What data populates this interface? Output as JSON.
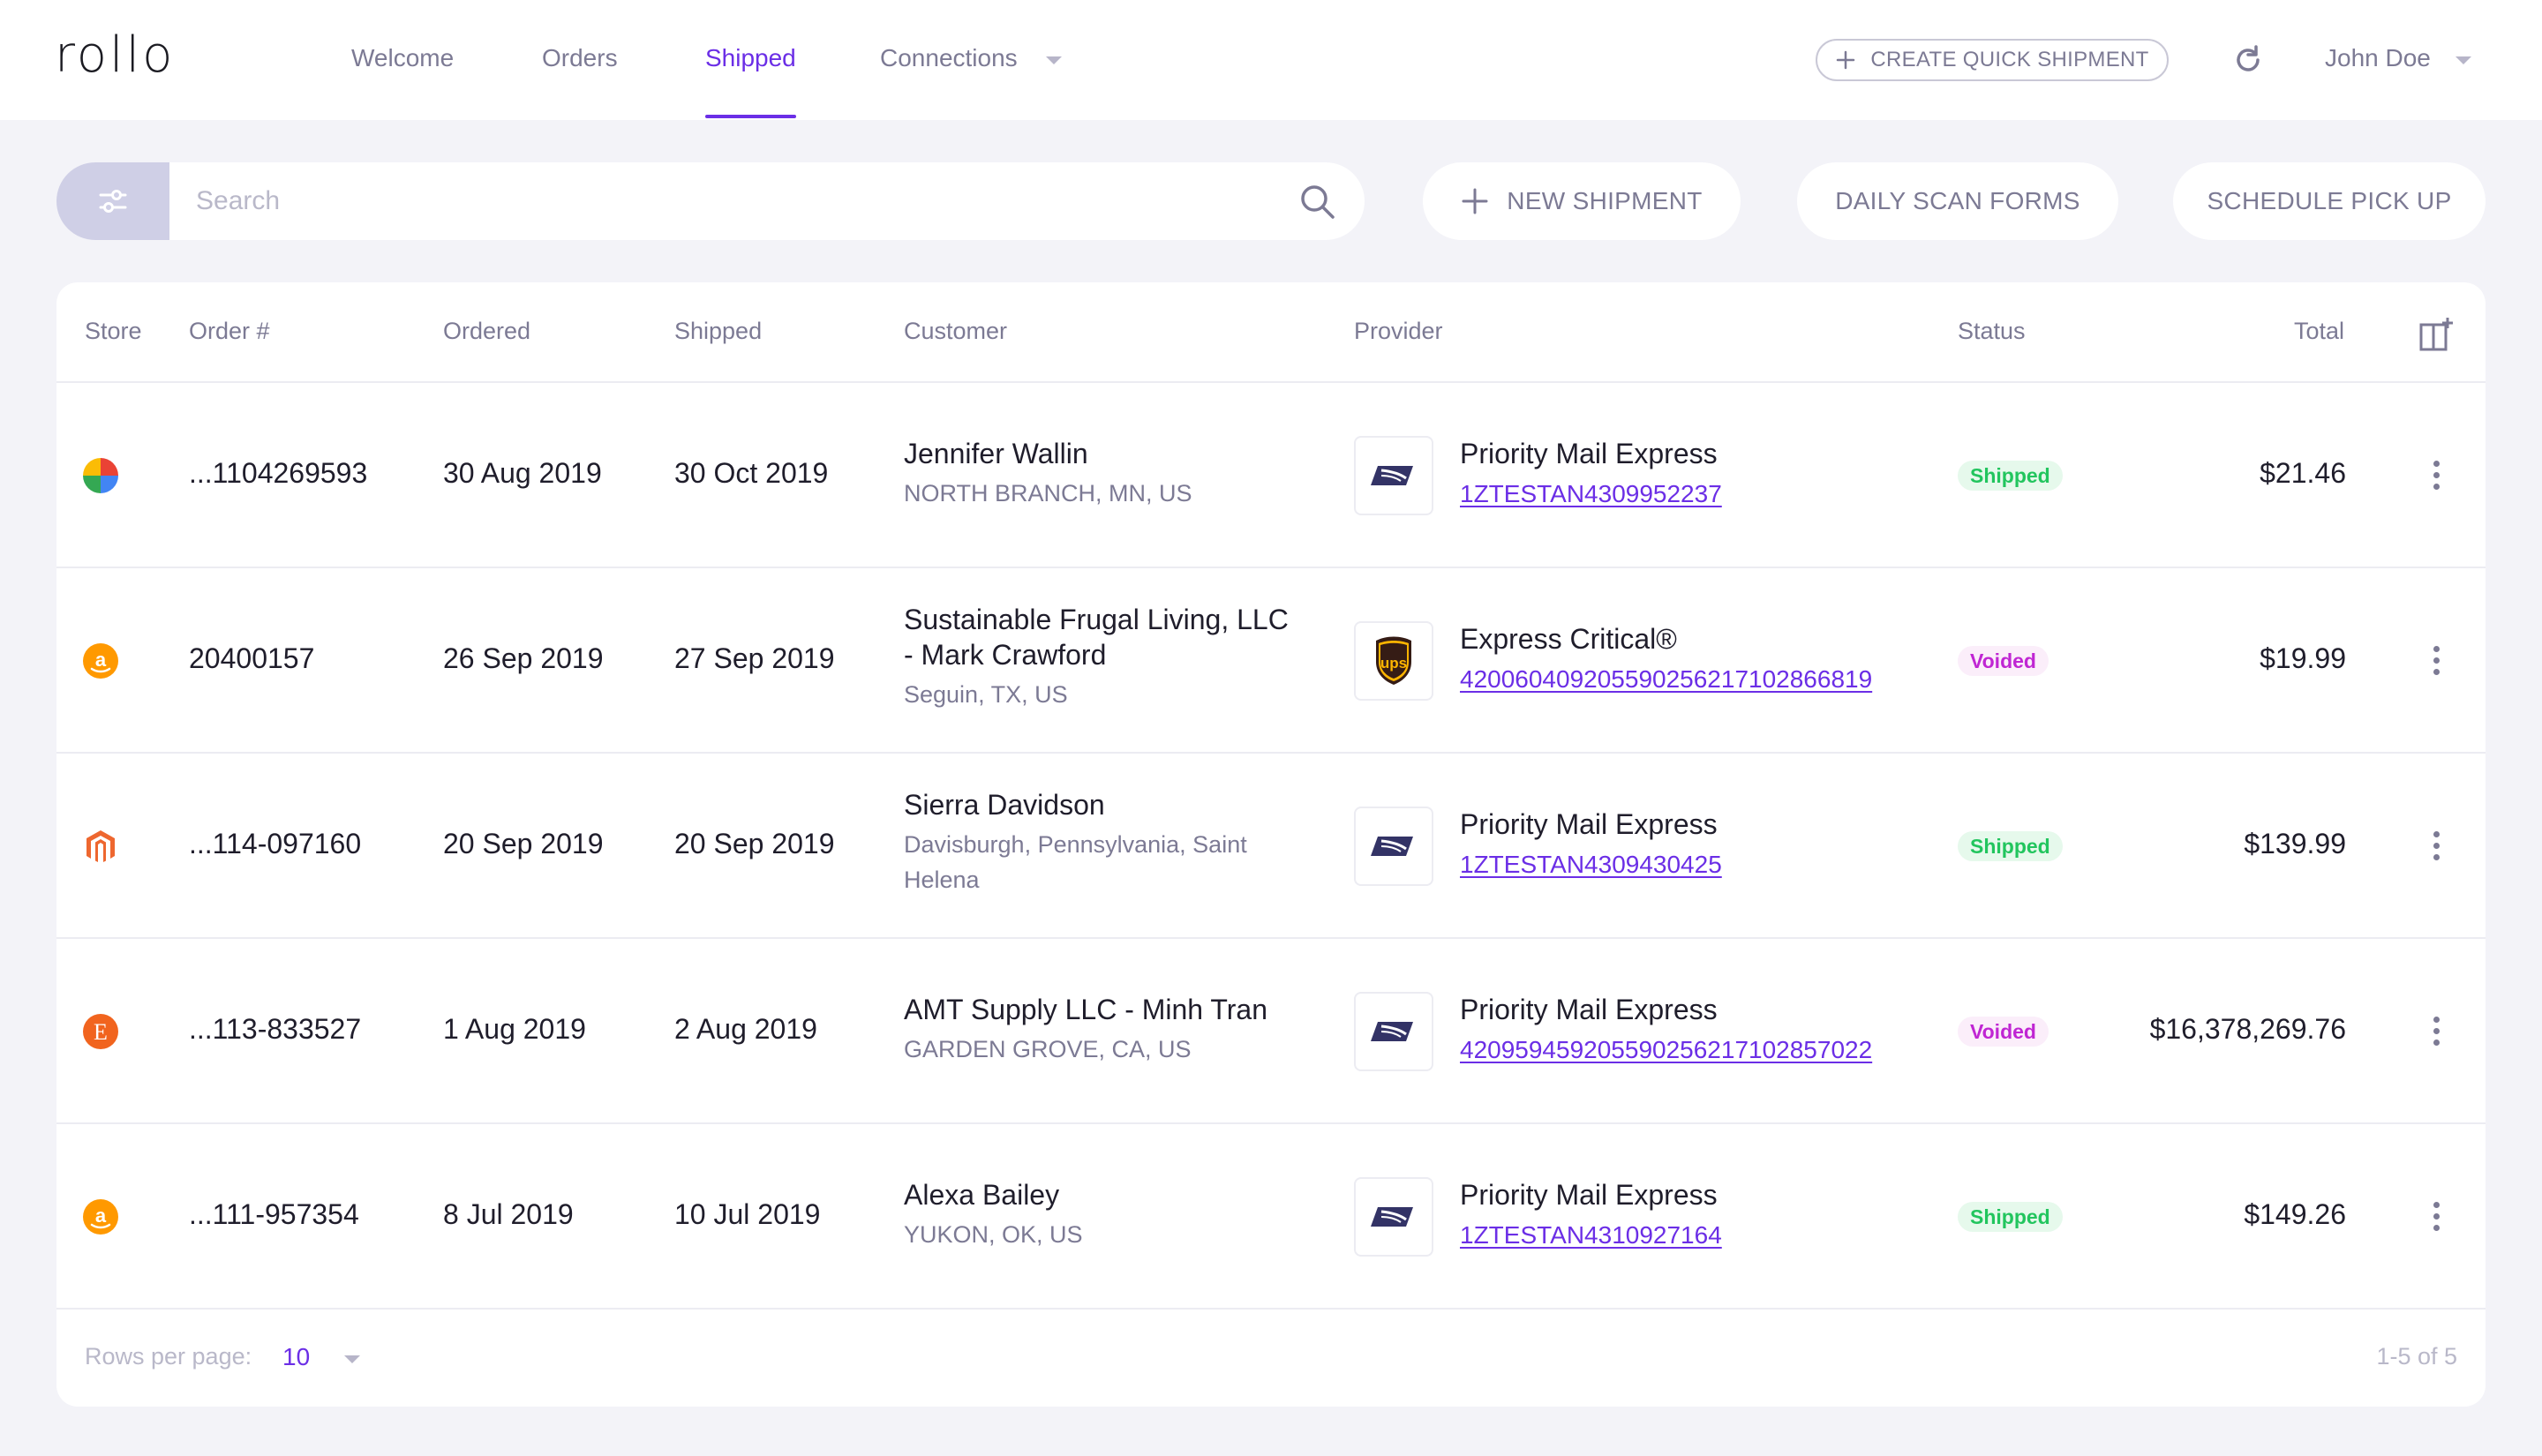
{
  "app": {
    "logo": "rollo"
  },
  "nav": {
    "items": [
      {
        "label": "Welcome"
      },
      {
        "label": "Orders"
      },
      {
        "label": "Shipped"
      },
      {
        "label": "Connections"
      }
    ],
    "active": "Shipped",
    "quick_shipment": "CREATE QUICK SHIPMENT",
    "user": "John Doe"
  },
  "toolbar": {
    "search_placeholder": "Search",
    "new_shipment": "NEW SHIPMENT",
    "daily_scan_forms": "DAILY SCAN FORMS",
    "schedule_pick_up": "SCHEDULE PICK UP"
  },
  "table": {
    "columns": [
      "Store",
      "Order #",
      "Ordered",
      "Shipped",
      "Customer",
      "Provider",
      "Status",
      "Total"
    ],
    "rows": [
      {
        "store_icon": "google-shopping-icon",
        "order": "...1104269593",
        "ordered": "30 Aug 2019",
        "shipped": "30 Oct 2019",
        "customer_name": "Jennifer Wallin",
        "customer_location": "NORTH BRANCH, MN, US",
        "provider_icon": "usps-icon",
        "service": "Priority Mail Express",
        "tracking": "1ZTESTAN4309952237",
        "status": "Shipped",
        "total": "$21.46"
      },
      {
        "store_icon": "amazon-icon",
        "order": "20400157",
        "ordered": "26 Sep 2019",
        "shipped": "27 Sep 2019",
        "customer_name": "Sustainable Frugal Living, LLC",
        "customer_name_2": "- Mark Crawford",
        "customer_location": "Seguin, TX, US",
        "provider_icon": "ups-icon",
        "service": "Express Critical®",
        "tracking": "420060409205590256217102866819",
        "status": "Voided",
        "total": "$19.99"
      },
      {
        "store_icon": "magento-icon",
        "order": "...114-097160",
        "ordered": "20 Sep 2019",
        "shipped": "20 Sep 2019",
        "customer_name": "Sierra Davidson",
        "customer_location": "Davisburgh, Pennsylvania, Saint",
        "customer_location_2": "Helena",
        "provider_icon": "usps-icon",
        "service": "Priority Mail Express",
        "tracking": "1ZTESTAN4309430425",
        "status": "Shipped",
        "total": "$139.99"
      },
      {
        "store_icon": "etsy-icon",
        "order": "...113-833527",
        "ordered": "1 Aug 2019",
        "shipped": "2 Aug 2019",
        "customer_name": "AMT Supply LLC - Minh Tran",
        "customer_location": "GARDEN GROVE, CA, US",
        "provider_icon": "usps-icon",
        "service": "Priority Mail Express",
        "tracking": "420959459205590256217102857022",
        "status": "Voided",
        "total": "$16,378,269.76"
      },
      {
        "store_icon": "amazon-icon",
        "order": "...111-957354",
        "ordered": "8 Jul 2019",
        "shipped": "10 Jul 2019",
        "customer_name": "Alexa Bailey",
        "customer_location": "YUKON, OK, US",
        "provider_icon": "usps-icon",
        "service": "Priority Mail Express",
        "tracking": "1ZTESTAN4310927164",
        "status": "Shipped",
        "total": "$149.26"
      }
    ]
  },
  "pagination": {
    "rows_per_page_label": "Rows per page:",
    "rows_per_page": "10",
    "range": "1-5 of 5"
  },
  "colors": {
    "accent": "#6b2ee6",
    "shipped": "#22c55e",
    "voided": "#c026d3",
    "muted": "#7c7a94"
  }
}
